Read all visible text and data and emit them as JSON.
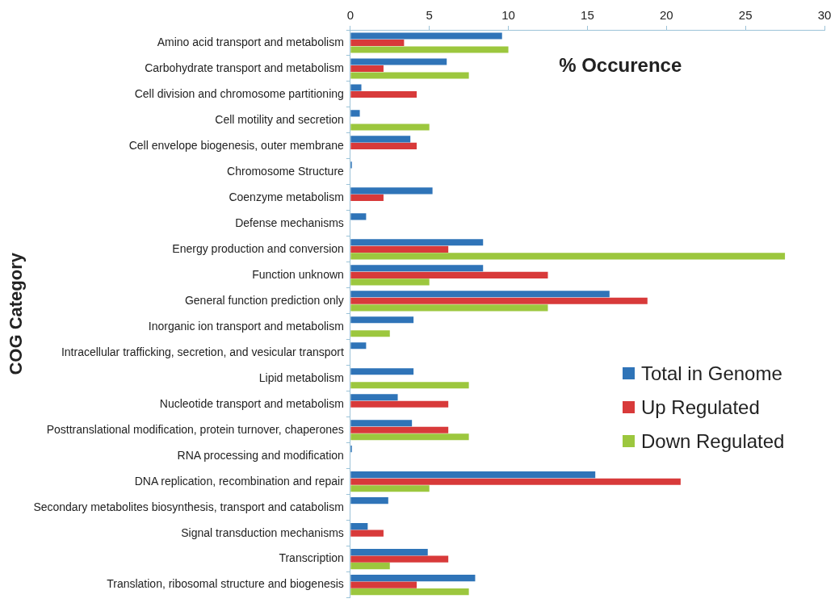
{
  "chart_data": {
    "type": "bar",
    "orientation": "horizontal",
    "ylabel": "COG Category",
    "annotations": [
      "% Occurence"
    ],
    "categories": [
      "Amino acid transport and metabolism",
      "Carbohydrate transport and metabolism",
      "Cell division and chromosome partitioning",
      "Cell motility and secretion",
      "Cell envelope biogenesis, outer membrane",
      "Chromosome Structure",
      "Coenzyme metabolism",
      "Defense mechanisms",
      "Energy production and conversion",
      "Function unknown",
      "General function prediction only",
      "Inorganic ion transport and metabolism",
      "Intracellular trafficking, secretion, and vesicular transport",
      "Lipid metabolism",
      "Nucleotide transport and metabolism",
      "Posttranslational modification, protein turnover, chaperones",
      "RNA processing and modification",
      "DNA replication, recombination and repair",
      "Secondary metabolites biosynthesis, transport and catabolism",
      "Signal transduction mechanisms",
      "Transcription",
      "Translation, ribosomal structure and biogenesis"
    ],
    "series": [
      {
        "name": "Total in Genome",
        "color": "#2f74b8",
        "values": [
          9.6,
          6.1,
          0.7,
          0.6,
          3.8,
          0.1,
          5.2,
          1.0,
          8.4,
          8.4,
          16.4,
          4.0,
          1.0,
          4.0,
          3.0,
          3.9,
          0.1,
          15.5,
          2.4,
          1.1,
          4.9,
          7.9
        ]
      },
      {
        "name": "Up Regulated",
        "color": "#d83a3a",
        "values": [
          3.4,
          2.1,
          4.2,
          0,
          4.2,
          0,
          2.1,
          0,
          6.2,
          12.5,
          18.8,
          0,
          0,
          0,
          6.2,
          6.2,
          0,
          20.9,
          0,
          2.1,
          6.2,
          4.2
        ]
      },
      {
        "name": "Down Regulated",
        "color": "#9cc73e",
        "values": [
          10.0,
          7.5,
          0,
          5.0,
          0,
          0,
          0,
          0,
          27.5,
          5.0,
          12.5,
          2.5,
          0,
          7.5,
          0,
          7.5,
          0,
          5.0,
          0,
          0,
          2.5,
          7.5
        ]
      }
    ],
    "xlim": [
      0,
      30
    ],
    "xticks": [
      0,
      5,
      10,
      15,
      20,
      25,
      30
    ],
    "grid": false,
    "legend": "right"
  }
}
